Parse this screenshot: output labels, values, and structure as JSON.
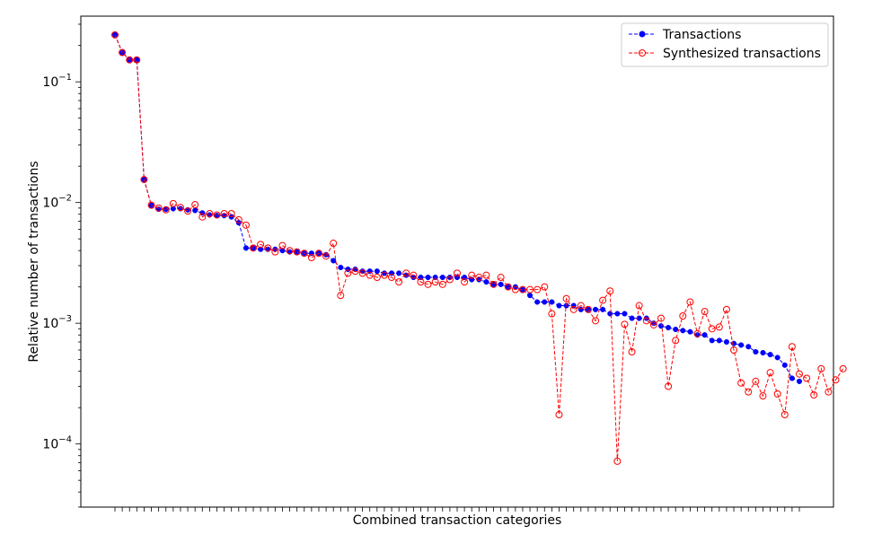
{
  "chart_data": {
    "type": "line",
    "xlabel": "Combined transaction categories",
    "ylabel": "Relative number of transactions",
    "y_scale": "log",
    "ylim": [
      3e-05,
      0.35
    ],
    "y_tick_labels": [
      {
        "value": 0.1,
        "mantissa": "10",
        "exp": "−1"
      },
      {
        "value": 0.01,
        "mantissa": "10",
        "exp": "−2"
      },
      {
        "value": 0.001,
        "mantissa": "10",
        "exp": "−3"
      },
      {
        "value": 0.0001,
        "mantissa": "10",
        "exp": "−4"
      }
    ],
    "legend_position": "top-right",
    "grid": false,
    "series": [
      {
        "name": "Transactions",
        "color": "#0000ff",
        "marker": "filled-circle",
        "line": "dashed",
        "values": [
          0.245,
          0.175,
          0.152,
          0.152,
          0.0155,
          0.0095,
          0.0088,
          0.0088,
          0.0089,
          0.0089,
          0.0087,
          0.0086,
          0.0082,
          0.0079,
          0.0078,
          0.0078,
          0.0076,
          0.0068,
          0.0042,
          0.0042,
          0.0041,
          0.0041,
          0.0041,
          0.004,
          0.0039,
          0.0039,
          0.0038,
          0.0038,
          0.0038,
          0.0037,
          0.0033,
          0.0029,
          0.0028,
          0.0028,
          0.0027,
          0.0027,
          0.0027,
          0.0026,
          0.0026,
          0.0026,
          0.0025,
          0.0024,
          0.0024,
          0.0024,
          0.0024,
          0.0024,
          0.0024,
          0.0024,
          0.0024,
          0.0023,
          0.0023,
          0.0022,
          0.0021,
          0.0021,
          0.002,
          0.002,
          0.0019,
          0.0017,
          0.0015,
          0.0015,
          0.0015,
          0.0014,
          0.0014,
          0.0014,
          0.0013,
          0.0013,
          0.0013,
          0.0013,
          0.0012,
          0.0012,
          0.0012,
          0.0011,
          0.0011,
          0.0011,
          0.001,
          0.00095,
          0.00092,
          0.00089,
          0.00087,
          0.00085,
          0.0008,
          0.0008,
          0.00072,
          0.00072,
          0.0007,
          0.00068,
          0.00066,
          0.00064,
          0.00058,
          0.00057,
          0.00055,
          0.00052,
          0.00045,
          0.00035,
          0.00033
        ]
      },
      {
        "name": "Synthesized transactions",
        "color": "#ff0000",
        "marker": "open-circle",
        "line": "dashed",
        "values": [
          0.245,
          0.175,
          0.152,
          0.152,
          0.0155,
          0.0095,
          0.009,
          0.0087,
          0.0098,
          0.0091,
          0.0085,
          0.0096,
          0.0076,
          0.0081,
          0.0079,
          0.0081,
          0.0081,
          0.0072,
          0.0065,
          0.0042,
          0.0045,
          0.0042,
          0.0039,
          0.0044,
          0.004,
          0.0039,
          0.0038,
          0.0035,
          0.0038,
          0.0036,
          0.0046,
          0.0017,
          0.0026,
          0.0027,
          0.0026,
          0.0025,
          0.0024,
          0.0025,
          0.0024,
          0.0022,
          0.0026,
          0.0025,
          0.0022,
          0.0021,
          0.0022,
          0.0021,
          0.0023,
          0.0026,
          0.0022,
          0.0025,
          0.0024,
          0.0025,
          0.0021,
          0.0024,
          0.002,
          0.0019,
          0.0019,
          0.0019,
          0.0019,
          0.002,
          0.0012,
          0.000175,
          0.0016,
          0.0013,
          0.0014,
          0.0013,
          0.00105,
          0.00155,
          0.00185,
          7.2e-05,
          0.00098,
          0.00058,
          0.0014,
          0.00105,
          0.00097,
          0.0011,
          0.0003,
          0.00072,
          0.00115,
          0.0015,
          0.00082,
          0.00125,
          0.0009,
          0.00093,
          0.0013,
          0.0006,
          0.00032,
          0.00027,
          0.00033,
          0.00025,
          0.00039,
          0.00026,
          0.000175,
          0.00064,
          0.00038,
          0.00035,
          0.000255,
          0.00042,
          0.00027,
          0.00034,
          0.00042
        ]
      }
    ]
  }
}
